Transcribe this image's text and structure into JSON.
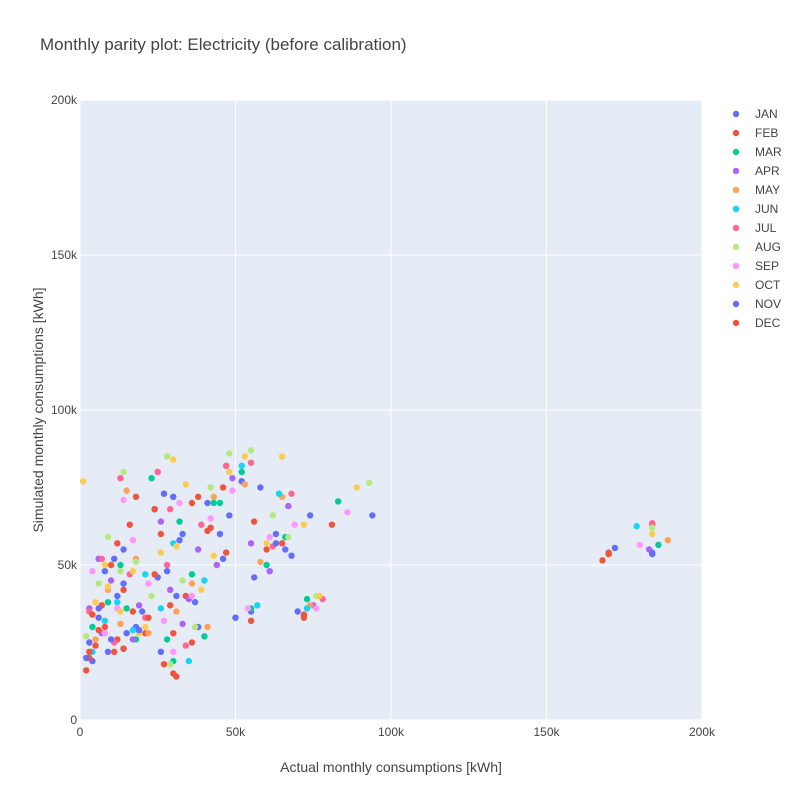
{
  "chart_data": {
    "type": "scatter",
    "title": "Monthly parity plot: Electricity (before calibration)",
    "xlabel": "Actual monthly consumptions [kWh]",
    "ylabel": "Simulated monthly consumptions [kWh]",
    "xlim": [
      0,
      200000
    ],
    "ylim": [
      0,
      200000
    ],
    "x_ticks": [
      "0",
      "50k",
      "100k",
      "150k",
      "200k"
    ],
    "y_ticks": [
      "0",
      "50k",
      "100k",
      "150k",
      "200k"
    ],
    "grid": true,
    "legend_position": "right",
    "plot_background": "#e5ecf6",
    "series": [
      {
        "name": "JAN",
        "color": "#636efa",
        "x": [
          3000,
          6000,
          9000,
          12000,
          15000,
          20000,
          25000,
          30000,
          33000,
          38000,
          48000,
          52000,
          58000,
          63000,
          66000,
          70000,
          74000,
          94000,
          172000,
          184000,
          4000,
          8000,
          14000,
          18000,
          26000,
          31000,
          45000,
          55000
        ],
        "y": [
          25000,
          33000,
          22000,
          40000,
          28000,
          35000,
          46000,
          72000,
          60000,
          30000,
          66000,
          77000,
          75000,
          60000,
          55000,
          35000,
          66000,
          66000,
          55500,
          53500,
          19000,
          48000,
          55000,
          30000,
          22000,
          40000,
          60000,
          35000
        ]
      },
      {
        "name": "FEB",
        "color": "#ef553b",
        "x": [
          2000,
          5000,
          8000,
          11000,
          14000,
          17000,
          21000,
          26000,
          30000,
          34000,
          38000,
          42000,
          50000,
          55000,
          60000,
          72000,
          81000,
          168000,
          170000,
          184000,
          3000,
          7000,
          12000,
          16000,
          24000,
          29000,
          36000,
          46000
        ],
        "y": [
          16000,
          24000,
          30000,
          22000,
          42000,
          35000,
          28000,
          60000,
          15000,
          40000,
          72000,
          62000,
          33000,
          32000,
          55000,
          34000,
          63000,
          51500,
          53500,
          63000,
          20000,
          37000,
          26000,
          63000,
          47000,
          37000,
          25000,
          75000
        ]
      },
      {
        "name": "MAR",
        "color": "#00cc96",
        "x": [
          4000,
          9000,
          13000,
          18000,
          23000,
          28000,
          32000,
          36000,
          40000,
          45000,
          52000,
          55000,
          60000,
          66000,
          73000,
          83000,
          186000,
          15000,
          30000,
          43000
        ],
        "y": [
          30000,
          38000,
          50000,
          26000,
          78000,
          26000,
          64000,
          47000,
          27000,
          70000,
          80000,
          36000,
          50000,
          59000,
          39000,
          70500,
          56500,
          36000,
          19000,
          70000
        ]
      },
      {
        "name": "APR",
        "color": "#ab63fa",
        "x": [
          3000,
          7000,
          10000,
          14000,
          19000,
          24000,
          29000,
          33000,
          38000,
          44000,
          49000,
          55000,
          61000,
          67000,
          75000,
          183000,
          6000,
          17000,
          26000,
          35000
        ],
        "y": [
          36000,
          28000,
          45000,
          23000,
          37000,
          68000,
          42000,
          31000,
          55000,
          50000,
          78000,
          57000,
          48000,
          69000,
          37000,
          55000,
          52000,
          26000,
          64000,
          39000
        ]
      },
      {
        "name": "MAY",
        "color": "#ffa15a",
        "x": [
          5000,
          9000,
          13000,
          18000,
          22000,
          27000,
          31000,
          36000,
          41000,
          47000,
          53000,
          58000,
          65000,
          74000,
          189000,
          15000,
          25000,
          43000
        ],
        "y": [
          26000,
          42000,
          31000,
          52000,
          28000,
          73000,
          35000,
          44000,
          30000,
          82000,
          76000,
          51000,
          72000,
          37000,
          58000,
          74000,
          80000,
          72000
        ]
      },
      {
        "name": "JUN",
        "color": "#19d3f3",
        "x": [
          4000,
          8000,
          12000,
          17000,
          21000,
          26000,
          30000,
          35000,
          40000,
          47000,
          52000,
          57000,
          64000,
          73000,
          179000
        ],
        "y": [
          22000,
          32000,
          38000,
          29000,
          47000,
          36000,
          57000,
          19000,
          45000,
          82000,
          82000,
          37000,
          73000,
          36000,
          62500
        ]
      },
      {
        "name": "JUL",
        "color": "#ff6692",
        "x": [
          3000,
          7000,
          11000,
          16000,
          21000,
          25000,
          29000,
          34000,
          39000,
          47000,
          55000,
          62000,
          68000,
          78000,
          184000,
          13000,
          28000
        ],
        "y": [
          35000,
          52000,
          25000,
          47000,
          33000,
          80000,
          68000,
          24000,
          63000,
          82000,
          83000,
          56000,
          73000,
          39000,
          63500,
          78000,
          50000
        ]
      },
      {
        "name": "AUG",
        "color": "#b6e880",
        "x": [
          2000,
          6000,
          9000,
          14000,
          18000,
          23000,
          28000,
          33000,
          37000,
          42000,
          48000,
          55000,
          62000,
          67000,
          76000,
          93000,
          184000,
          13000,
          29000
        ],
        "y": [
          27000,
          44000,
          59000,
          80000,
          51000,
          40000,
          85000,
          45000,
          30000,
          75000,
          86000,
          87000,
          66000,
          59000,
          40000,
          76500,
          62000,
          48000,
          18000
        ]
      },
      {
        "name": "SEP",
        "color": "#ff97ff",
        "x": [
          4000,
          8000,
          12000,
          17000,
          22000,
          27000,
          32000,
          36000,
          42000,
          49000,
          54000,
          61000,
          69000,
          76000,
          86000,
          180000,
          14000,
          30000
        ],
        "y": [
          48000,
          28000,
          36000,
          58000,
          44000,
          32000,
          70000,
          40000,
          65000,
          74000,
          36000,
          59000,
          63000,
          36000,
          67000,
          56500,
          71000,
          22000
        ]
      },
      {
        "name": "OCT",
        "color": "#fecb52",
        "x": [
          1000,
          5000,
          9000,
          13000,
          17000,
          21000,
          26000,
          30000,
          34000,
          39000,
          43000,
          48000,
          53000,
          60000,
          65000,
          72000,
          77000,
          89000,
          184000,
          8000,
          19000,
          31000
        ],
        "y": [
          77000,
          38000,
          43000,
          35000,
          48000,
          30000,
          54000,
          84000,
          76000,
          42000,
          53000,
          80000,
          85000,
          57000,
          85000,
          63000,
          40000,
          75000,
          60000,
          50000,
          28000,
          56000
        ]
      },
      {
        "name": "NOV",
        "color": "#636efa",
        "x": [
          2000,
          6000,
          10000,
          14000,
          19000,
          24000,
          28000,
          32000,
          37000,
          41000,
          46000,
          50000,
          56000,
          63000,
          68000,
          184000,
          11000,
          27000
        ],
        "y": [
          20000,
          36000,
          26000,
          44000,
          29000,
          68000,
          48000,
          58000,
          38000,
          70000,
          52000,
          33000,
          46000,
          57000,
          53000,
          54000,
          52000,
          73000
        ]
      },
      {
        "name": "DEC",
        "color": "#ef553b",
        "x": [
          3000,
          6000,
          10000,
          14000,
          18000,
          22000,
          27000,
          31000,
          36000,
          41000,
          47000,
          56000,
          65000,
          72000,
          170000,
          4000,
          12000,
          24000,
          30000
        ],
        "y": [
          22000,
          29000,
          50000,
          23000,
          72000,
          33000,
          18000,
          14000,
          70000,
          61000,
          54000,
          64000,
          57000,
          33000,
          54000,
          34000,
          57000,
          68000,
          28000
        ]
      }
    ]
  }
}
